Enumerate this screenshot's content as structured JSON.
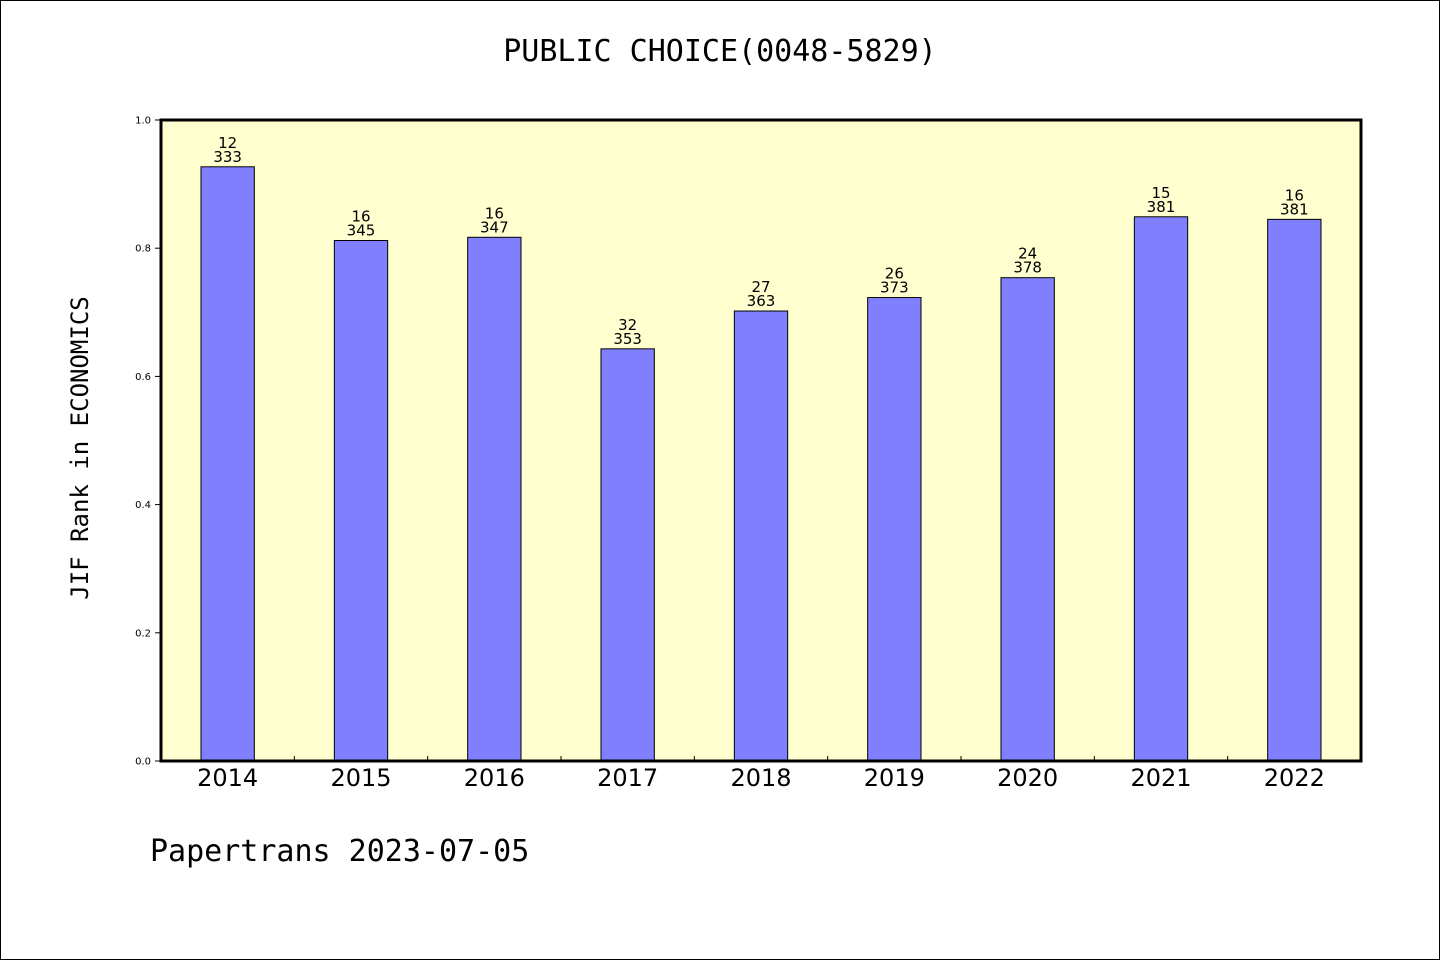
{
  "chart_data": {
    "type": "bar",
    "title": "PUBLIC CHOICE(0048-5829)",
    "ylabel": "JIF Rank in ECONOMICS",
    "xlabel": "",
    "categories": [
      "2014",
      "2015",
      "2016",
      "2017",
      "2018",
      "2019",
      "2020",
      "2021",
      "2022"
    ],
    "values": [
      0.927,
      0.812,
      0.817,
      0.643,
      0.702,
      0.723,
      0.754,
      0.849,
      0.845
    ],
    "ranks": [
      "12",
      "16",
      "16",
      "32",
      "27",
      "26",
      "24",
      "15",
      "16"
    ],
    "totals": [
      "333",
      "345",
      "347",
      "353",
      "363",
      "373",
      "378",
      "381",
      "381"
    ],
    "ylim": [
      0,
      1.0
    ],
    "yticks": [
      "0.0",
      "0.2",
      "0.4",
      "0.6",
      "0.8",
      "1.0"
    ],
    "grid": false,
    "bar_color": "#8080ff",
    "plot_background": "#ffffd0"
  },
  "footer": "Papertrans 2023-07-05"
}
